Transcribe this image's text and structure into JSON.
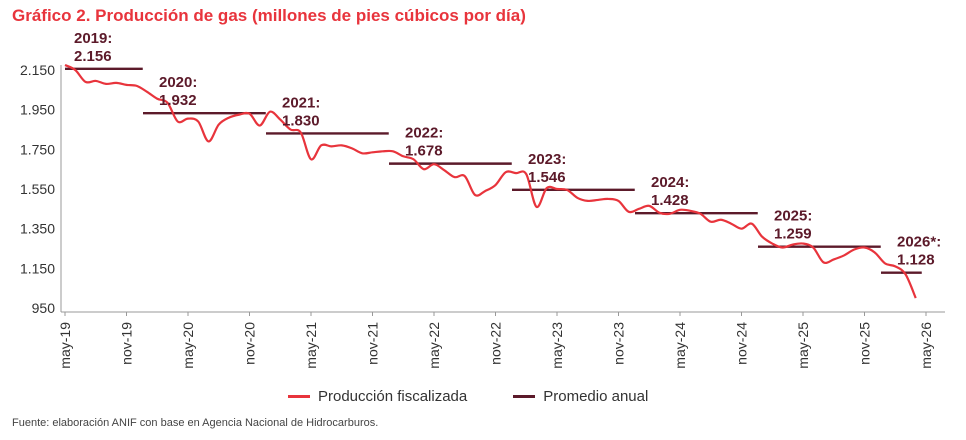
{
  "title": "Gráfico 2. Producción de gas (millones de pies cúbicos por día)",
  "source": "Fuente: elaboración ANIF con base en Agencia Nacional de Hidrocarburos.",
  "colors": {
    "production": "#e8343c",
    "average": "#5c1a2a",
    "title": "#e8343c"
  },
  "chart_data": {
    "type": "line",
    "title": "Gráfico 2. Producción de gas (millones de pies cúbicos por día)",
    "xlabel": "",
    "ylabel": "",
    "ylim": [
      950,
      2150
    ],
    "y_ticks": [
      950,
      1150,
      1350,
      1550,
      1750,
      1950,
      2150
    ],
    "y_tick_labels": [
      "950",
      "1.150",
      "1.350",
      "1.550",
      "1.750",
      "1.950",
      "2.150"
    ],
    "x_ticks": [
      "may-19",
      "nov-19",
      "may-20",
      "nov-20",
      "may-21",
      "nov-21",
      "may-22",
      "nov-22",
      "may-23",
      "nov-23",
      "may-24",
      "nov-24",
      "may-25",
      "nov-25",
      "may-26"
    ],
    "legend": {
      "placement": "bottom",
      "entries": [
        "Producción fiscalizada",
        "Promedio anual"
      ]
    },
    "grid": false,
    "series": [
      {
        "name": "Producción fiscalizada",
        "x": [
          "may-19",
          "jun-19",
          "jul-19",
          "ago-19",
          "sep-19",
          "oct-19",
          "nov-19",
          "dic-19",
          "ene-20",
          "feb-20",
          "mar-20",
          "abr-20",
          "may-20",
          "jun-20",
          "jul-20",
          "ago-20",
          "sep-20",
          "oct-20",
          "nov-20",
          "dic-20",
          "ene-21",
          "feb-21",
          "mar-21",
          "abr-21",
          "may-21",
          "jun-21",
          "jul-21",
          "ago-21",
          "sep-21",
          "oct-21",
          "nov-21",
          "dic-21",
          "ene-22",
          "feb-22",
          "mar-22",
          "abr-22",
          "may-22",
          "jun-22",
          "jul-22",
          "ago-22",
          "sep-22",
          "oct-22",
          "nov-22",
          "dic-22",
          "ene-23",
          "feb-23",
          "mar-23",
          "abr-23",
          "may-23",
          "jun-23",
          "jul-23",
          "ago-23",
          "sep-23",
          "oct-23",
          "nov-23",
          "dic-23",
          "ene-24",
          "feb-24",
          "mar-24",
          "abr-24",
          "may-24",
          "jun-24",
          "jul-24",
          "ago-24",
          "sep-24",
          "oct-24",
          "nov-24",
          "dic-24",
          "ene-25",
          "feb-25",
          "mar-25",
          "abr-25",
          "may-25",
          "jun-25",
          "jul-25",
          "ago-25",
          "sep-25",
          "oct-25",
          "nov-25",
          "dic-25",
          "ene-26",
          "feb-26",
          "mar-26",
          "abr-26"
        ],
        "values": [
          2175,
          2150,
          2090,
          2095,
          2080,
          2085,
          2075,
          2070,
          2040,
          2005,
          1985,
          1890,
          1905,
          1890,
          1790,
          1875,
          1910,
          1925,
          1930,
          1870,
          1940,
          1900,
          1850,
          1835,
          1700,
          1770,
          1765,
          1770,
          1755,
          1730,
          1735,
          1740,
          1740,
          1715,
          1700,
          1650,
          1675,
          1645,
          1610,
          1615,
          1520,
          1540,
          1570,
          1635,
          1630,
          1625,
          1460,
          1555,
          1550,
          1545,
          1505,
          1490,
          1495,
          1500,
          1490,
          1435,
          1450,
          1465,
          1430,
          1425,
          1445,
          1440,
          1425,
          1385,
          1395,
          1375,
          1350,
          1375,
          1310,
          1275,
          1255,
          1270,
          1275,
          1255,
          1180,
          1195,
          1215,
          1245,
          1255,
          1230,
          1175,
          1160,
          1120,
          1000
        ]
      },
      {
        "name": "Promedio anual",
        "type": "step",
        "periods": [
          {
            "label": "2019:",
            "value": 2156,
            "value_label": "2.156",
            "start": "may-19",
            "end": "dic-19"
          },
          {
            "label": "2020:",
            "value": 1932,
            "value_label": "1.932",
            "start": "ene-20",
            "end": "dic-20"
          },
          {
            "label": "2021:",
            "value": 1830,
            "value_label": "1.830",
            "start": "ene-21",
            "end": "dic-21"
          },
          {
            "label": "2022:",
            "value": 1678,
            "value_label": "1.678",
            "start": "ene-22",
            "end": "dic-22"
          },
          {
            "label": "2023:",
            "value": 1546,
            "value_label": "1.546",
            "start": "ene-23",
            "end": "dic-23"
          },
          {
            "label": "2024:",
            "value": 1428,
            "value_label": "1.428",
            "start": "ene-24",
            "end": "dic-24"
          },
          {
            "label": "2025:",
            "value": 1259,
            "value_label": "1.259",
            "start": "ene-25",
            "end": "dic-25"
          },
          {
            "label": "2026*:",
            "value": 1128,
            "value_label": "1.128",
            "start": "ene-26",
            "end": "abr-26"
          }
        ]
      }
    ]
  }
}
